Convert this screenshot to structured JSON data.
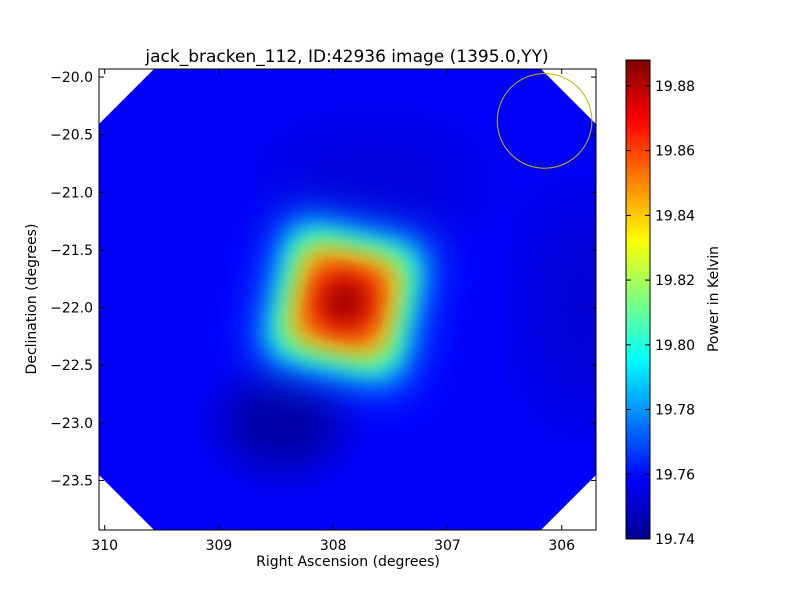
{
  "chart_data": {
    "type": "heatmap",
    "title": "jack_bracken_112, ID:42936 image (1395.0,YY)",
    "xlabel": "Right Ascension (degrees)",
    "ylabel": "Declination (degrees)",
    "xlim": [
      310.05,
      305.7
    ],
    "ylim": [
      -23.93,
      -19.93
    ],
    "x_ticks": [
      {
        "value": 310,
        "label": "310"
      },
      {
        "value": 309,
        "label": "309"
      },
      {
        "value": 308,
        "label": "308"
      },
      {
        "value": 307,
        "label": "307"
      },
      {
        "value": 306,
        "label": "306"
      }
    ],
    "y_ticks": [
      {
        "value": -20.0,
        "label": "−20.0"
      },
      {
        "value": -20.5,
        "label": "−20.5"
      },
      {
        "value": -21.0,
        "label": "−21.0"
      },
      {
        "value": -21.5,
        "label": "−21.5"
      },
      {
        "value": -22.0,
        "label": "−22.0"
      },
      {
        "value": -22.5,
        "label": "−22.5"
      },
      {
        "value": -23.0,
        "label": "−23.0"
      },
      {
        "value": -23.5,
        "label": "−23.5"
      }
    ],
    "colorbar": {
      "label": "Power in Kelvin",
      "range": [
        19.74,
        19.888
      ],
      "colormap": "jet",
      "ticks": [
        {
          "value": 19.74,
          "label": "19.74"
        },
        {
          "value": 19.76,
          "label": "19.76"
        },
        {
          "value": 19.78,
          "label": "19.78"
        },
        {
          "value": 19.8,
          "label": "19.80"
        },
        {
          "value": 19.82,
          "label": "19.82"
        },
        {
          "value": 19.84,
          "label": "19.84"
        },
        {
          "value": 19.86,
          "label": "19.86"
        },
        {
          "value": 19.88,
          "label": "19.88"
        }
      ]
    },
    "background_level": 19.758,
    "peak": {
      "ra": 307.9,
      "dec": -21.95,
      "value": 19.885
    },
    "low_spot": {
      "ra": 308.45,
      "dec": -23.0,
      "value": 19.745
    },
    "beam_circle": {
      "ra": 306.15,
      "dec": -20.38,
      "radius_deg": 0.37,
      "color": "#c8b400"
    },
    "corner_mask_color": "#ffffff"
  }
}
